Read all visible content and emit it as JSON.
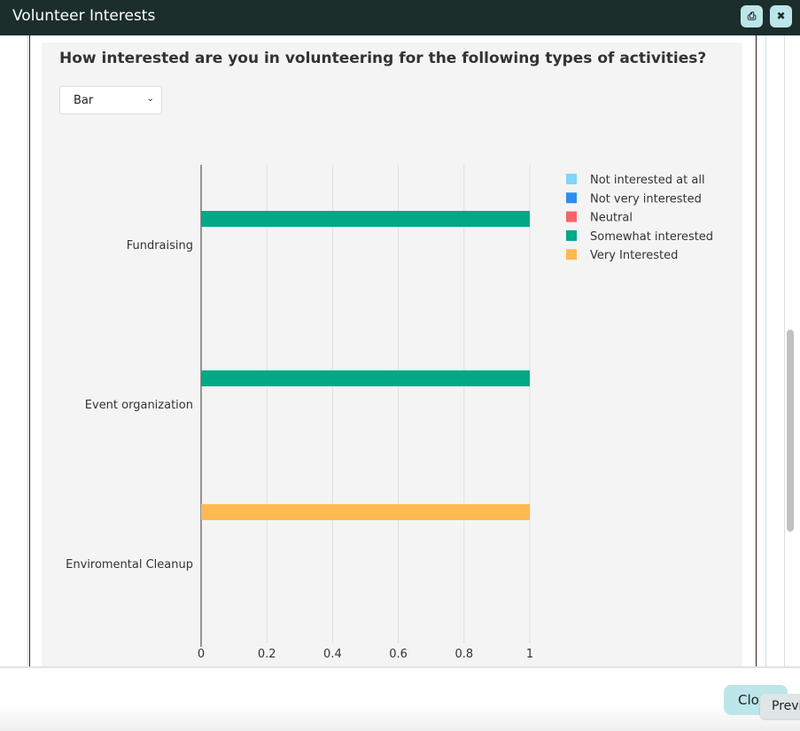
{
  "window": {
    "title": "Volunteer Interests",
    "print_icon": "print-icon",
    "close_icon": "close-icon"
  },
  "question": "How interested are you in volunteering for the following types of activities?",
  "chart_type_select": {
    "value": "Bar"
  },
  "footer": {
    "close_label": "Clo",
    "tooltip": "Previ"
  },
  "chart_data": {
    "type": "bar",
    "orientation": "horizontal",
    "categories": [
      "Fundraising",
      "Event organization",
      "Enviromental Cleanup"
    ],
    "series": [
      {
        "name": "Not interested at all",
        "color": "#7fd6f6",
        "values": [
          0,
          0,
          0
        ]
      },
      {
        "name": "Not very interested",
        "color": "#2e8ef0",
        "values": [
          0,
          0,
          0
        ]
      },
      {
        "name": "Neutral",
        "color": "#f7636b",
        "values": [
          0,
          0,
          0
        ]
      },
      {
        "name": "Somewhat interested",
        "color": "#00a887",
        "values": [
          1,
          1,
          0
        ]
      },
      {
        "name": "Very Interested",
        "color": "#ffb950",
        "values": [
          0,
          0,
          1
        ]
      }
    ],
    "xlim": [
      0,
      1
    ],
    "xticks": [
      "0",
      "0.2",
      "0.4",
      "0.6",
      "0.8",
      "1"
    ],
    "grid": true,
    "legend": "top-right"
  }
}
